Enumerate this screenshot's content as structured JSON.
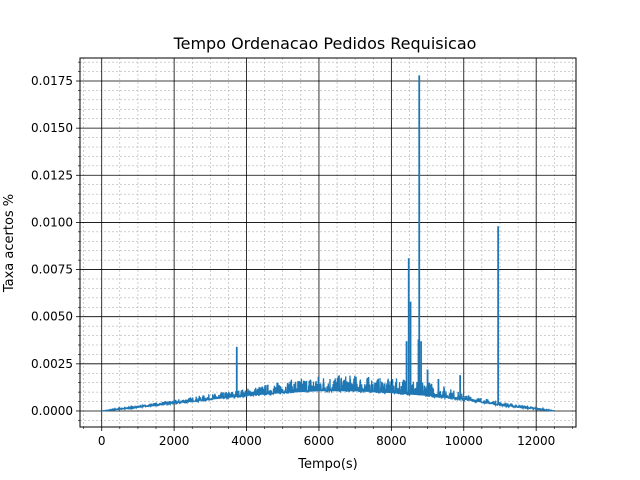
{
  "chart_data": {
    "type": "line",
    "title": "Tempo Ordenacao Pedidos Requisicao",
    "xlabel": "Tempo(s)",
    "ylabel": "Taxa acertos %",
    "xlim": [
      -600,
      13100
    ],
    "ylim": [
      -0.00085,
      0.01872
    ],
    "xticks": [
      0,
      2000,
      4000,
      6000,
      8000,
      10000,
      12000
    ],
    "xtick_labels": [
      "0",
      "2000",
      "4000",
      "6000",
      "8000",
      "10000",
      "12000"
    ],
    "yticks": [
      0.0,
      0.0025,
      0.005,
      0.0075,
      0.01,
      0.0125,
      0.015,
      0.0175
    ],
    "ytick_labels": [
      "0.0000",
      "0.0025",
      "0.0050",
      "0.0075",
      "0.0100",
      "0.0125",
      "0.0150",
      "0.0175"
    ],
    "grid": true,
    "minor_grid": true,
    "legend": "none",
    "series": [
      {
        "color": "#1f77b4",
        "baseline_points": [
          [
            0,
            0.0
          ],
          [
            1000,
            0.0002
          ],
          [
            2000,
            0.0004
          ],
          [
            3000,
            0.0006
          ],
          [
            4000,
            0.0008
          ],
          [
            5000,
            0.00095
          ],
          [
            6000,
            0.00105
          ],
          [
            7000,
            0.00105
          ],
          [
            8000,
            0.00095
          ],
          [
            9000,
            0.0008
          ],
          [
            10000,
            0.0006
          ],
          [
            11000,
            0.0003
          ],
          [
            12000,
            0.0001
          ],
          [
            12500,
            0.0
          ]
        ],
        "envelope_upper": [
          [
            0,
            0.0
          ],
          [
            1000,
            0.0003
          ],
          [
            2000,
            0.0006
          ],
          [
            3000,
            0.0009
          ],
          [
            4000,
            0.0012
          ],
          [
            5000,
            0.0016
          ],
          [
            6000,
            0.0019
          ],
          [
            7000,
            0.0019
          ],
          [
            8000,
            0.0017
          ],
          [
            8400,
            0.0018
          ],
          [
            9000,
            0.0016
          ],
          [
            9500,
            0.0013
          ],
          [
            10000,
            0.0009
          ],
          [
            11000,
            0.0005
          ],
          [
            12000,
            0.0002
          ],
          [
            12500,
            0.0
          ]
        ],
        "spikes": [
          [
            3730,
            0.0034
          ],
          [
            8420,
            0.0037
          ],
          [
            8480,
            0.0081
          ],
          [
            8530,
            0.0058
          ],
          [
            8750,
            0.0038
          ],
          [
            8770,
            0.0178
          ],
          [
            8820,
            0.0037
          ],
          [
            9000,
            0.0022
          ],
          [
            9300,
            0.0017
          ],
          [
            9900,
            0.0019
          ],
          [
            10950,
            0.0098
          ]
        ]
      }
    ]
  }
}
